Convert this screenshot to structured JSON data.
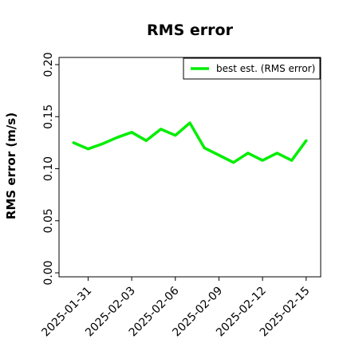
{
  "chart_data": {
    "type": "line",
    "title": "RMS error",
    "xlabel": "",
    "ylabel": "RMS error (m/s)",
    "ylim": [
      0.0,
      0.2
    ],
    "yticks": [
      "0.00",
      "0.05",
      "0.10",
      "0.15",
      "0.20"
    ],
    "yticks_values": [
      0.0,
      0.05,
      0.1,
      0.15,
      0.2
    ],
    "xlim": [
      "2025-01-29",
      "2025-02-16"
    ],
    "xticks": [
      "2025-01-31",
      "2025-02-03",
      "2025-02-06",
      "2025-02-09",
      "2025-02-12",
      "2025-02-15"
    ],
    "highlighted_xtick": "2025-02-06",
    "highlight_color": "#2ca02c",
    "grid": false,
    "legend": {
      "position": "top-right",
      "entries": [
        "best est. (RMS error)"
      ]
    },
    "series": [
      {
        "name": "best est. (RMS error)",
        "color": "#00ee00",
        "x": [
          "2025-01-30",
          "2025-01-31",
          "2025-02-01",
          "2025-02-02",
          "2025-02-03",
          "2025-02-04",
          "2025-02-05",
          "2025-02-06",
          "2025-02-07",
          "2025-02-08",
          "2025-02-09",
          "2025-02-10",
          "2025-02-11",
          "2025-02-12",
          "2025-02-13",
          "2025-02-14",
          "2025-02-15"
        ],
        "values": [
          0.125,
          0.119,
          0.124,
          0.13,
          0.135,
          0.127,
          0.138,
          0.132,
          0.144,
          0.12,
          0.113,
          0.106,
          0.115,
          0.108,
          0.115,
          0.108,
          0.127
        ]
      }
    ]
  }
}
